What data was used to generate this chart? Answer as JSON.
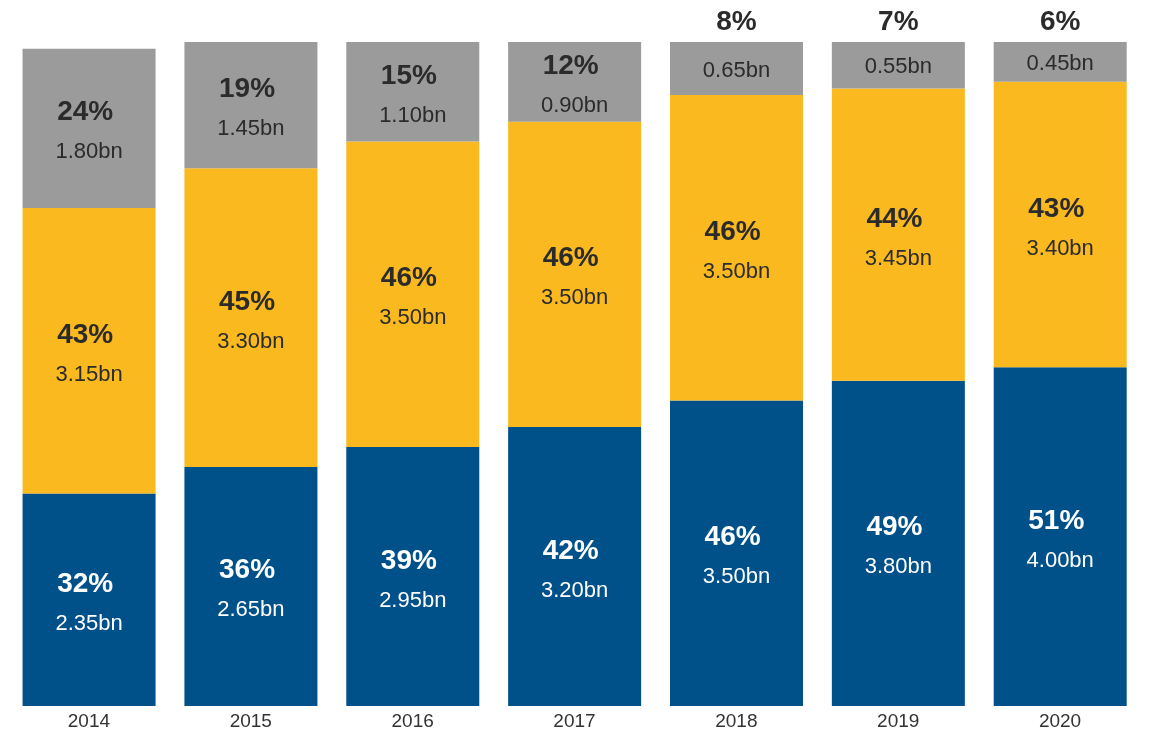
{
  "chart_data": {
    "type": "bar",
    "stacked": true,
    "categories": [
      "2014",
      "2015",
      "2016",
      "2017",
      "2018",
      "2019",
      "2020"
    ],
    "series": [
      {
        "color": "#00508a",
        "values": [
          32,
          36,
          39,
          42,
          46,
          49,
          51
        ],
        "value_labels": [
          "32% 2.35bn",
          "36% 2.65bn",
          "39% 2.95bn",
          "42% 3.20bn",
          "46% 3.50bn",
          "49% 3.80bn",
          "51% 4.00bn"
        ]
      },
      {
        "color": "#f9b91f",
        "values": [
          43,
          45,
          46,
          46,
          46,
          44,
          43
        ],
        "value_labels": [
          "43% 3.15bn",
          "45% 3.30bn",
          "46% 3.50bn",
          "46% 3.50bn",
          "46% 3.50bn",
          "44% 3.45bn",
          "43% 3.40bn"
        ]
      },
      {
        "color": "#9b9b9b",
        "values": [
          24,
          19,
          15,
          12,
          8,
          7,
          6
        ],
        "value_labels": [
          "24% 1.80bn",
          "19% 1.45bn",
          "15% 1.10bn",
          "12% 0.90bn",
          "8% 0.65bn",
          "7% 0.55bn",
          "6% 0.45bn"
        ]
      }
    ],
    "legend": false,
    "grid": false
  }
}
